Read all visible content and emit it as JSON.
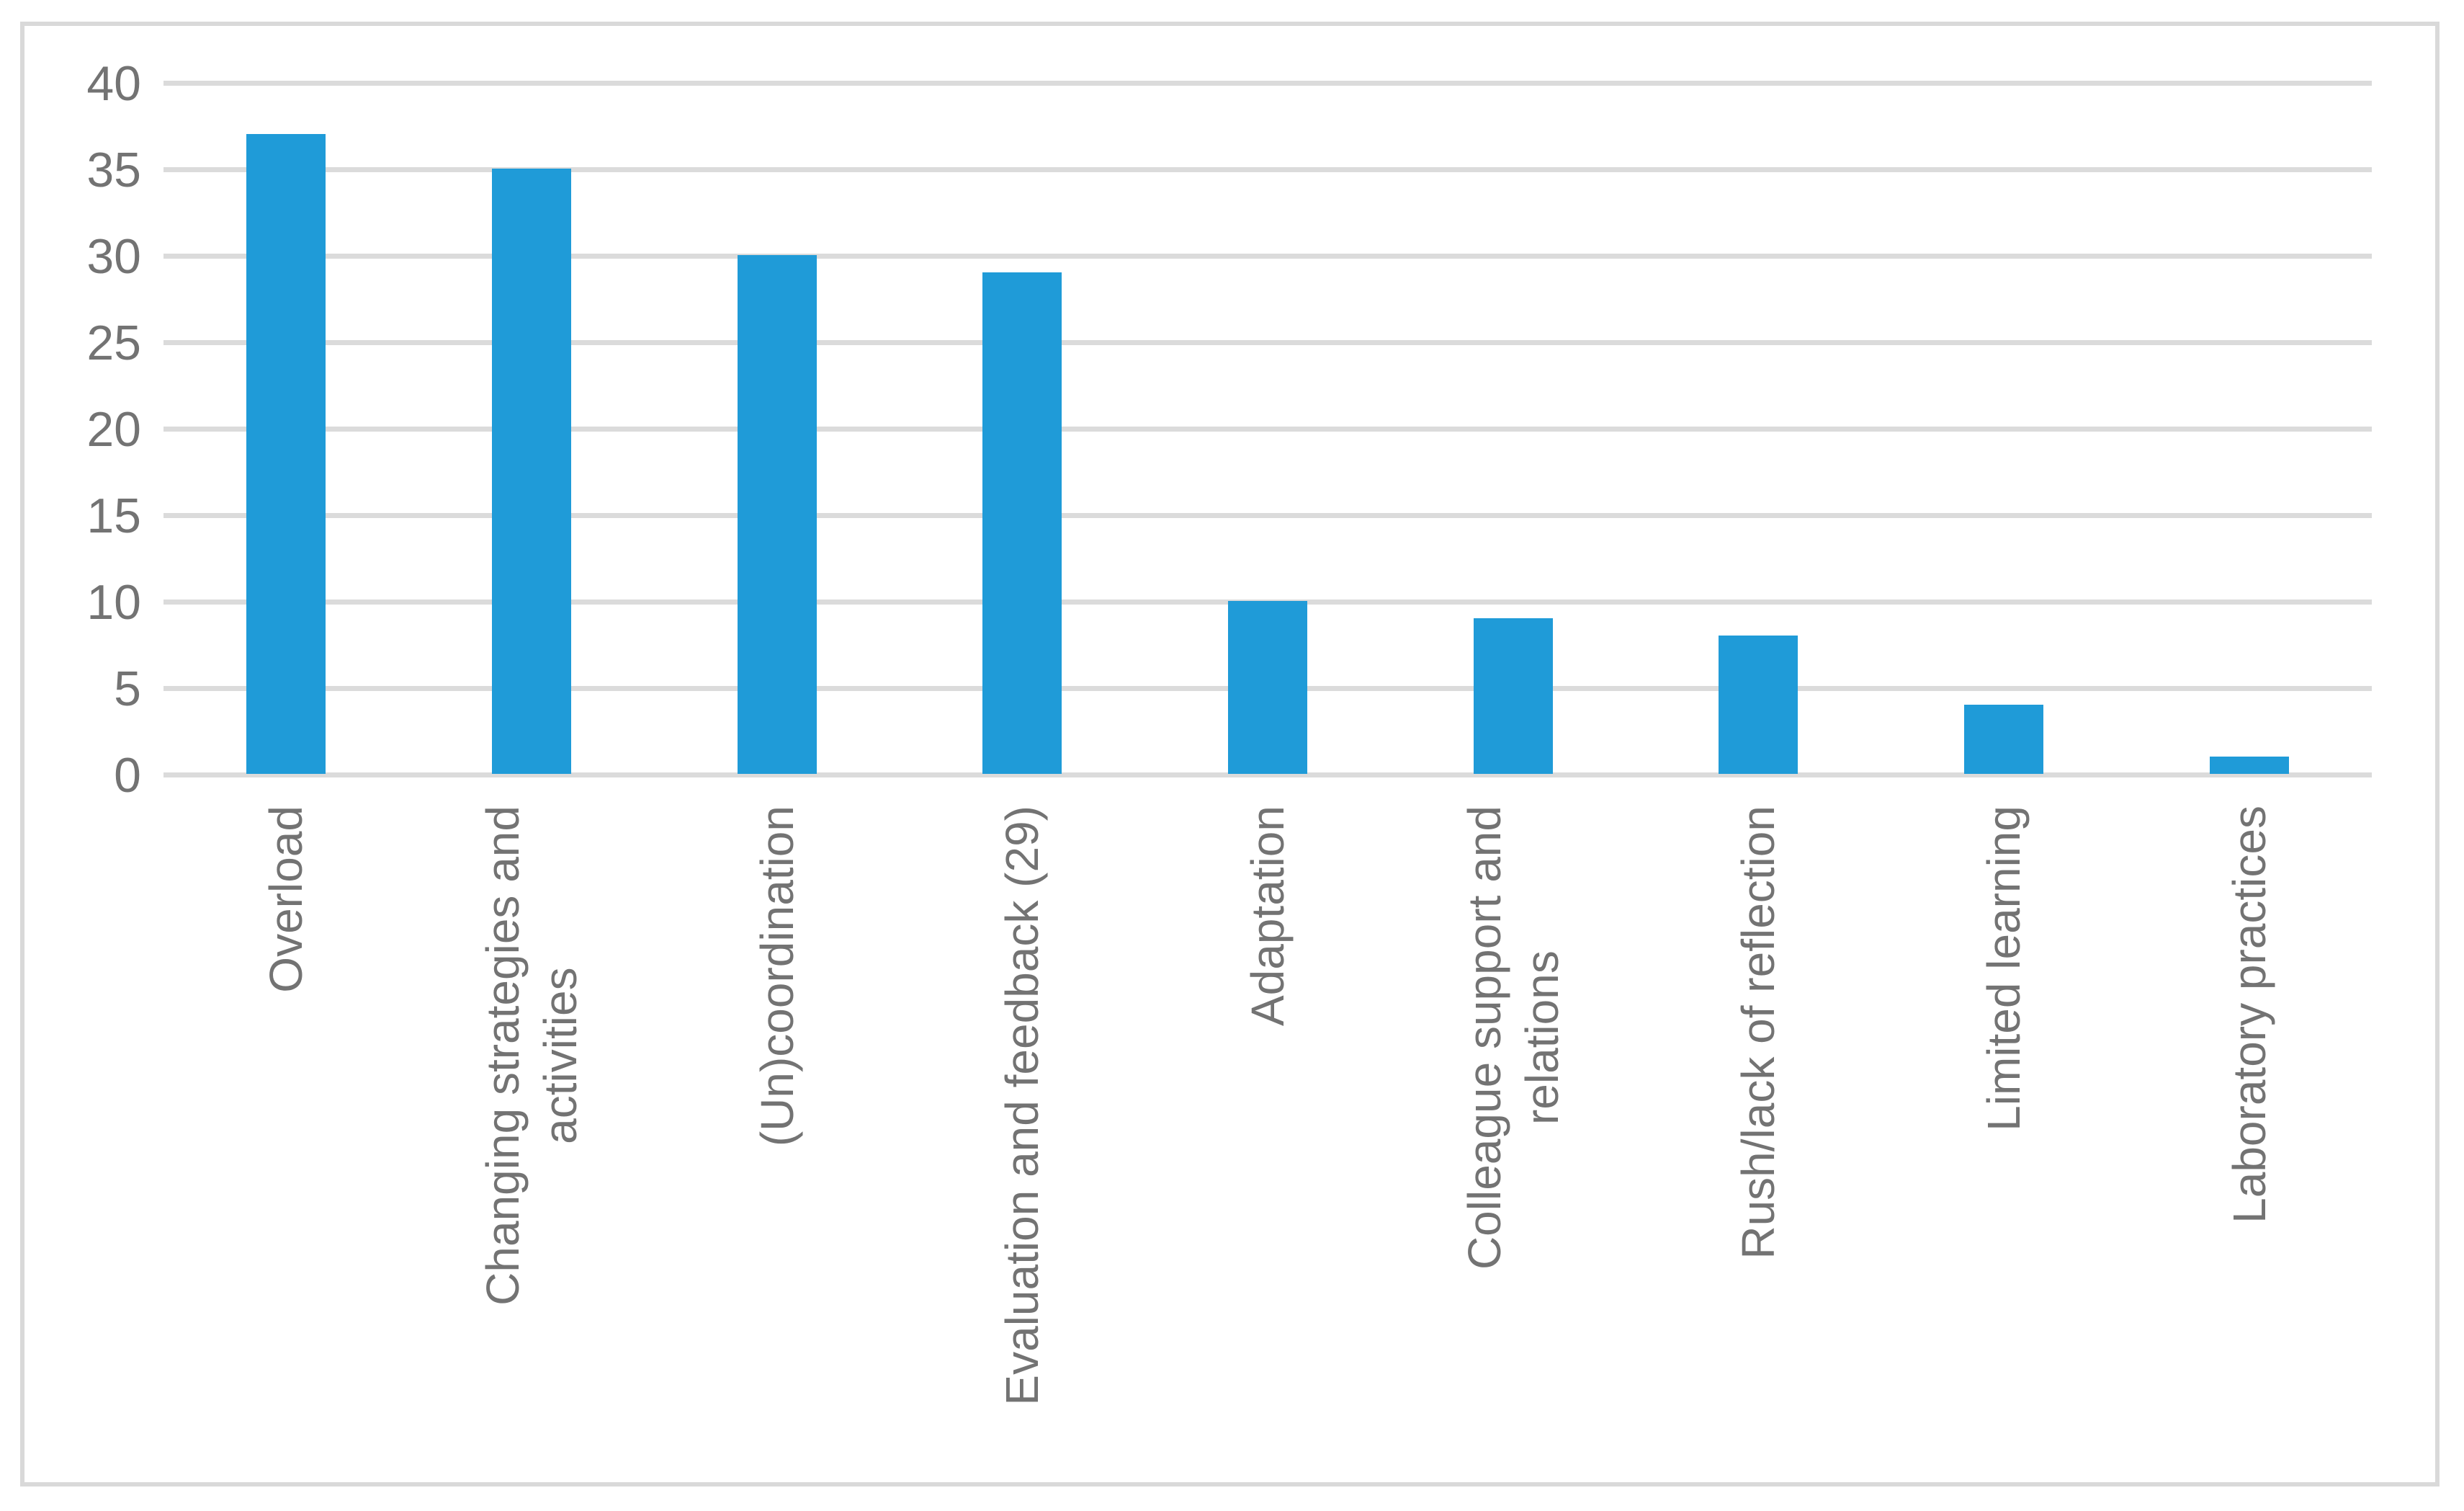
{
  "chart_data": {
    "type": "bar",
    "categories": [
      "Overload",
      "Changing strategies and\nactivities",
      "(Un)coordination",
      "Evaluation and feedback (29)",
      "Adaptation",
      "Colleague support and\nrelations",
      "Rush/lack of reflection",
      "Limited learning",
      "Laboratory practices"
    ],
    "values": [
      37,
      35,
      30,
      29,
      10,
      9,
      8,
      4,
      1
    ],
    "yticks": [
      0,
      5,
      10,
      15,
      20,
      25,
      30,
      35,
      40
    ],
    "ylim": [
      0,
      40
    ],
    "grid": "horizontal",
    "legend_position": "none",
    "bar_color": "#1F9BD8",
    "gridline_color": "#DBDBDB",
    "axis_text_color": "#737373",
    "frame_border_color": "#D9D9D9",
    "background_color": "#FFFFFF"
  }
}
